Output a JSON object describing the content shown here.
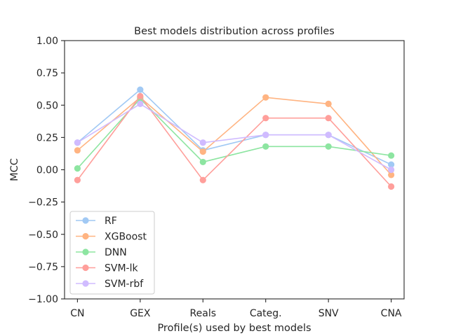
{
  "chart_data": {
    "type": "line",
    "title": "Best models distribution across profiles",
    "xlabel": "Profile(s) used by best models",
    "ylabel": "MCC",
    "categories": [
      "CN",
      "GEX",
      "Reals",
      "Categ.",
      "SNV",
      "CNA"
    ],
    "ylim": [
      -1.0,
      1.0
    ],
    "yticks": [
      -1.0,
      -0.75,
      -0.5,
      -0.25,
      0.0,
      0.25,
      0.5,
      0.75,
      1.0
    ],
    "ytick_labels": [
      "−1.00",
      "−0.75",
      "−0.50",
      "−0.25",
      "0.00",
      "0.25",
      "0.50",
      "0.75",
      "1.00"
    ],
    "grid": false,
    "legend_position": "lower-left",
    "series": [
      {
        "name": "RF",
        "color": "#a1c9f4",
        "values": [
          0.21,
          0.62,
          0.15,
          0.27,
          0.27,
          0.04
        ]
      },
      {
        "name": "XGBoost",
        "color": "#ffb482",
        "values": [
          0.15,
          0.56,
          0.14,
          0.56,
          0.51,
          -0.04
        ]
      },
      {
        "name": "DNN",
        "color": "#8de5a1",
        "values": [
          0.01,
          0.55,
          0.06,
          0.18,
          0.18,
          0.11
        ]
      },
      {
        "name": "SVM-lk",
        "color": "#ff9f9b",
        "values": [
          -0.08,
          0.57,
          -0.08,
          0.4,
          0.4,
          -0.13
        ]
      },
      {
        "name": "SVM-rbf",
        "color": "#d0bbff",
        "values": [
          0.21,
          0.51,
          0.21,
          0.27,
          0.27,
          0.0
        ]
      }
    ]
  }
}
